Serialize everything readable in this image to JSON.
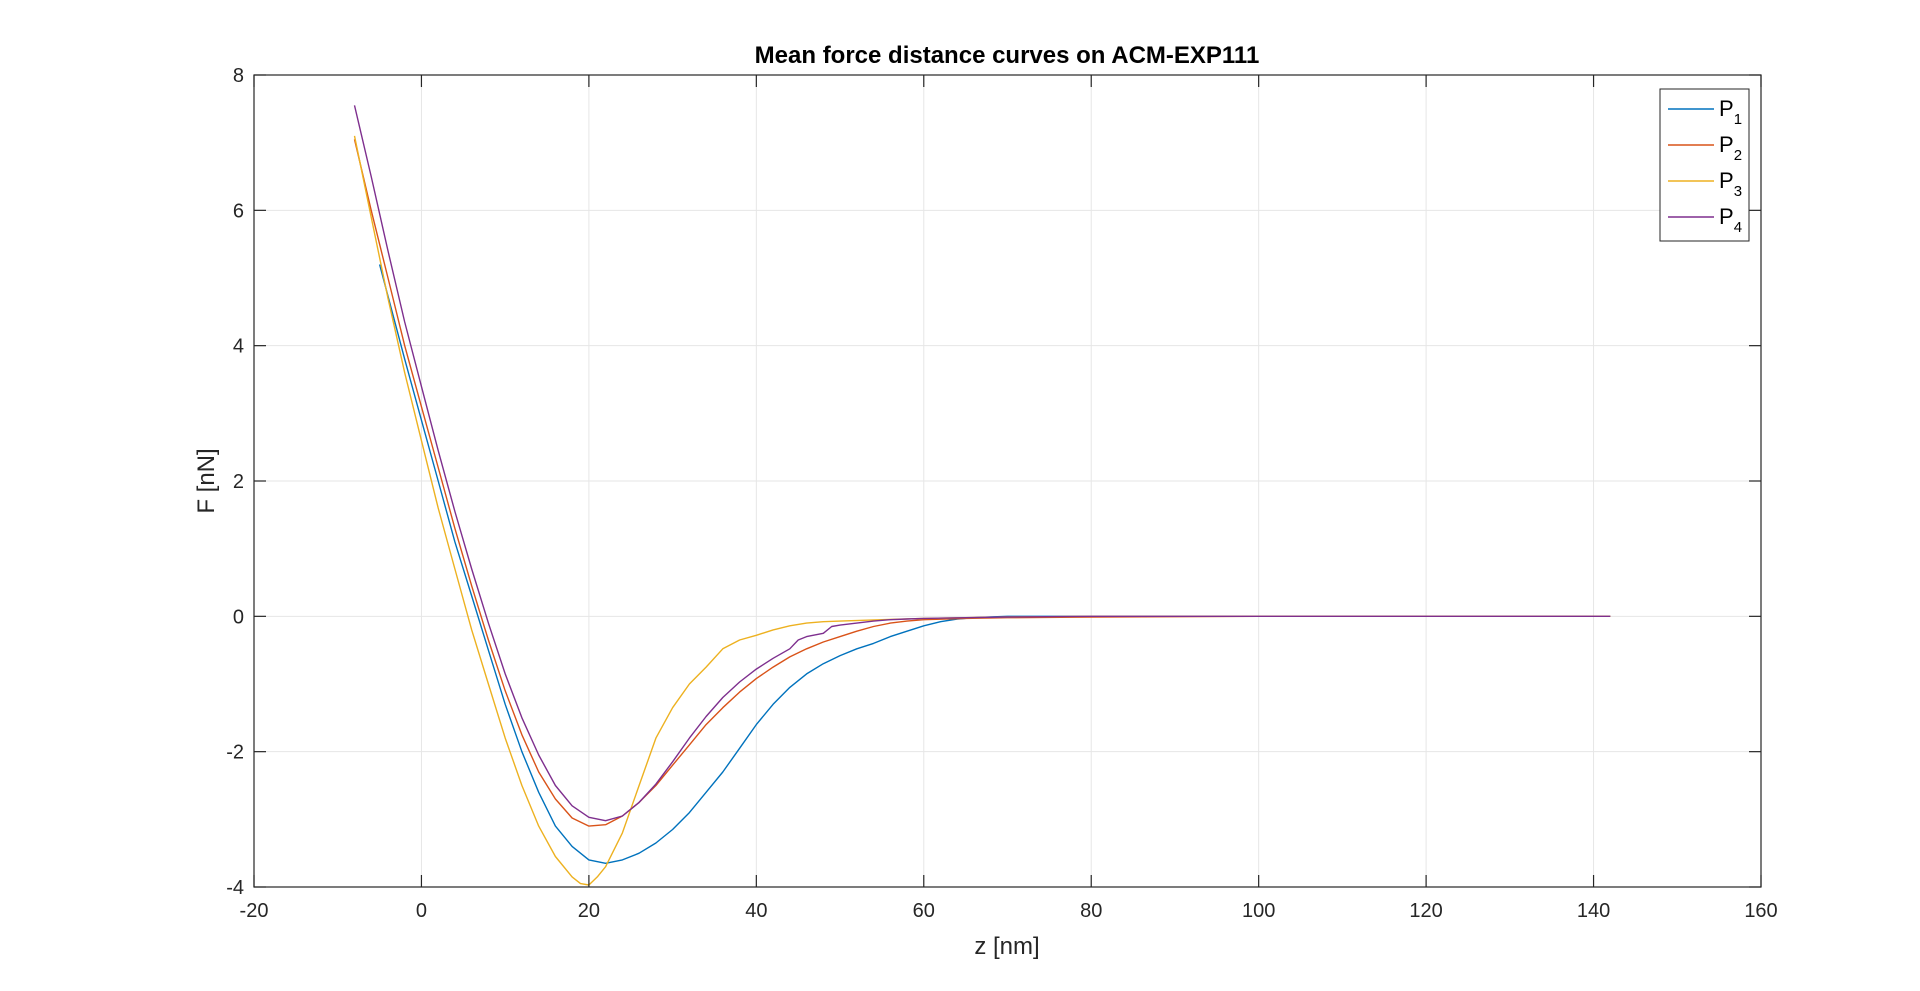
{
  "chart_data": {
    "type": "line",
    "title": "Mean force distance curves on ACM-EXP111",
    "xlabel": "z [nm]",
    "ylabel": "F [nN]",
    "xlim": [
      -20,
      160
    ],
    "ylim": [
      -4,
      8
    ],
    "xticks": [
      -20,
      0,
      20,
      40,
      60,
      80,
      100,
      120,
      140,
      160
    ],
    "yticks": [
      -4,
      -2,
      0,
      2,
      4,
      6,
      8
    ],
    "xtick_labels": [
      "-20",
      "0",
      "20",
      "40",
      "60",
      "80",
      "100",
      "120",
      "140",
      "160"
    ],
    "ytick_labels": [
      "-4",
      "-2",
      "0",
      "2",
      "4",
      "6",
      "8"
    ],
    "grid": true,
    "legend_position": "top-right",
    "series": [
      {
        "name": "P",
        "subscript": "1",
        "color": "#0072BD",
        "x": [
          -5,
          -2,
          0,
          2,
          4,
          6,
          8,
          10,
          12,
          14,
          16,
          18,
          20,
          22,
          24,
          26,
          28,
          30,
          32,
          34,
          36,
          38,
          40,
          42,
          44,
          46,
          48,
          50,
          52,
          54,
          56,
          58,
          60,
          62,
          64,
          66,
          68,
          70,
          75,
          80,
          90,
          100,
          120,
          142
        ],
        "y": [
          5.2,
          3.8,
          2.9,
          2.0,
          1.1,
          0.3,
          -0.5,
          -1.3,
          -2.0,
          -2.6,
          -3.1,
          -3.4,
          -3.6,
          -3.65,
          -3.6,
          -3.5,
          -3.35,
          -3.15,
          -2.9,
          -2.6,
          -2.3,
          -1.95,
          -1.6,
          -1.3,
          -1.05,
          -0.85,
          -0.7,
          -0.58,
          -0.48,
          -0.4,
          -0.3,
          -0.22,
          -0.14,
          -0.08,
          -0.04,
          -0.02,
          -0.01,
          0.0,
          0.0,
          0.0,
          0.0,
          0.0,
          0.0,
          0.0
        ]
      },
      {
        "name": "P",
        "subscript": "2",
        "color": "#D95319",
        "x": [
          -8,
          -6,
          -4,
          -2,
          0,
          2,
          4,
          6,
          8,
          10,
          12,
          14,
          16,
          18,
          20,
          22,
          24,
          26,
          28,
          30,
          32,
          34,
          36,
          38,
          40,
          42,
          44,
          46,
          48,
          50,
          52,
          54,
          56,
          58,
          60,
          65,
          70,
          80,
          100,
          120,
          142
        ],
        "y": [
          7.05,
          6.0,
          5.0,
          4.0,
          3.1,
          2.2,
          1.3,
          0.45,
          -0.35,
          -1.1,
          -1.75,
          -2.3,
          -2.7,
          -2.98,
          -3.1,
          -3.08,
          -2.95,
          -2.75,
          -2.5,
          -2.2,
          -1.9,
          -1.6,
          -1.35,
          -1.12,
          -0.92,
          -0.75,
          -0.6,
          -0.48,
          -0.38,
          -0.3,
          -0.22,
          -0.15,
          -0.1,
          -0.07,
          -0.05,
          -0.03,
          -0.02,
          -0.01,
          0.0,
          0.0,
          0.0
        ]
      },
      {
        "name": "P",
        "subscript": "3",
        "color": "#EDB120",
        "x": [
          -8,
          -6,
          -4,
          -2,
          0,
          2,
          4,
          6,
          8,
          10,
          12,
          14,
          16,
          18,
          19,
          20,
          21,
          22,
          24,
          26,
          28,
          30,
          32,
          34,
          36,
          38,
          40,
          42,
          44,
          46,
          48,
          50,
          55,
          60,
          65,
          70,
          80,
          100,
          120,
          142
        ],
        "y": [
          7.1,
          5.9,
          4.7,
          3.6,
          2.6,
          1.6,
          0.7,
          -0.2,
          -1.0,
          -1.8,
          -2.5,
          -3.1,
          -3.55,
          -3.85,
          -3.95,
          -3.97,
          -3.85,
          -3.7,
          -3.2,
          -2.5,
          -1.8,
          -1.35,
          -1.0,
          -0.75,
          -0.48,
          -0.35,
          -0.28,
          -0.2,
          -0.14,
          -0.1,
          -0.08,
          -0.07,
          -0.05,
          -0.03,
          -0.02,
          -0.01,
          0.0,
          0.0,
          0.0,
          0.0
        ]
      },
      {
        "name": "P",
        "subscript": "4",
        "color": "#7E2F8E",
        "x": [
          -8,
          -6,
          -4,
          -2,
          0,
          2,
          4,
          6,
          8,
          10,
          12,
          14,
          16,
          18,
          20,
          22,
          24,
          26,
          28,
          30,
          32,
          34,
          36,
          38,
          40,
          42,
          44,
          45,
          46,
          48,
          49,
          50,
          52,
          54,
          56,
          58,
          60,
          65,
          70,
          80,
          100,
          120,
          142
        ],
        "y": [
          7.55,
          6.5,
          5.4,
          4.35,
          3.4,
          2.45,
          1.55,
          0.7,
          -0.1,
          -0.85,
          -1.5,
          -2.05,
          -2.5,
          -2.8,
          -2.97,
          -3.02,
          -2.95,
          -2.75,
          -2.48,
          -2.15,
          -1.8,
          -1.48,
          -1.2,
          -0.97,
          -0.78,
          -0.62,
          -0.48,
          -0.35,
          -0.3,
          -0.25,
          -0.15,
          -0.13,
          -0.1,
          -0.07,
          -0.05,
          -0.04,
          -0.03,
          -0.02,
          -0.01,
          0.0,
          0.0,
          0.0,
          0.0
        ]
      }
    ]
  }
}
